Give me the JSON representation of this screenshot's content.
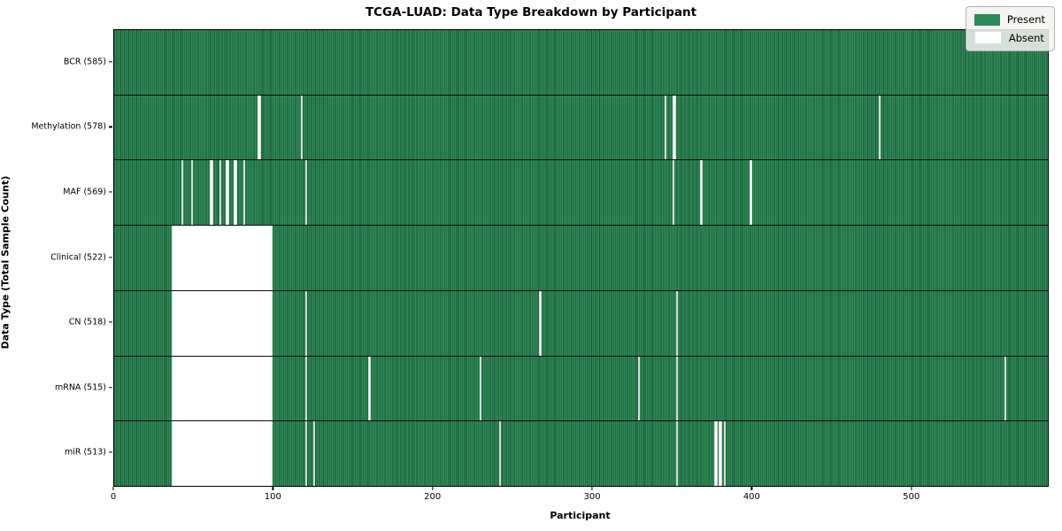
{
  "title": "TCGA-LUAD: Data Type Breakdown by Participant",
  "xlabel": "Participant",
  "ylabel": "Data Type (Total Sample Count)",
  "legend": {
    "present_label": "Present",
    "absent_label": "Absent",
    "position": "upper right"
  },
  "colors": {
    "present": "#2e8b57",
    "present_stripe_dark": "#1c5636",
    "absent": "#ffffff",
    "background": "#ffffff"
  },
  "chart_data": {
    "type": "heatmap",
    "title": "TCGA-LUAD: Data Type Breakdown by Participant",
    "xlabel": "Participant",
    "ylabel": "Data Type (Total Sample Count)",
    "x_ticks": [
      0,
      100,
      200,
      300,
      400,
      500
    ],
    "xlim": [
      0,
      585
    ],
    "n_participants": 585,
    "grid": false,
    "legend_position": "upper right",
    "legend_entries": [
      "Present",
      "Absent"
    ],
    "value_encoding": {
      "present": "#2e8b57",
      "absent": "#ffffff"
    },
    "rows": [
      {
        "label": "BCR (585)",
        "data_type": "BCR",
        "present_count": 585,
        "absent_count": 0,
        "absent_ranges": []
      },
      {
        "label": "Methylation (578)",
        "data_type": "Methylation",
        "present_count": 578,
        "absent_count": 7,
        "absent_ranges": [
          [
            90,
            91
          ],
          [
            117,
            117
          ],
          [
            345,
            345
          ],
          [
            350,
            351
          ],
          [
            479,
            479
          ]
        ]
      },
      {
        "label": "MAF (569)",
        "data_type": "MAF",
        "present_count": 569,
        "absent_count": 16,
        "absent_ranges": [
          [
            42,
            42
          ],
          [
            48,
            48
          ],
          [
            60,
            61
          ],
          [
            66,
            66
          ],
          [
            70,
            71
          ],
          [
            75,
            76
          ],
          [
            81,
            81
          ],
          [
            120,
            120
          ],
          [
            350,
            350
          ],
          [
            367,
            368
          ],
          [
            398,
            399
          ]
        ]
      },
      {
        "label": "Clinical (522)",
        "data_type": "Clinical",
        "present_count": 522,
        "absent_count": 63,
        "absent_ranges": [
          [
            36,
            98
          ]
        ]
      },
      {
        "label": "CN (518)",
        "data_type": "CN",
        "present_count": 518,
        "absent_count": 67,
        "absent_ranges": [
          [
            36,
            98
          ],
          [
            120,
            120
          ],
          [
            266,
            267
          ],
          [
            352,
            352
          ]
        ]
      },
      {
        "label": "mRNA (515)",
        "data_type": "mRNA",
        "present_count": 515,
        "absent_count": 70,
        "absent_ranges": [
          [
            36,
            98
          ],
          [
            120,
            120
          ],
          [
            159,
            160
          ],
          [
            229,
            229
          ],
          [
            328,
            328
          ],
          [
            352,
            352
          ],
          [
            558,
            558
          ]
        ]
      },
      {
        "label": "miR (513)",
        "data_type": "miR",
        "present_count": 513,
        "absent_count": 72,
        "absent_ranges": [
          [
            36,
            98
          ],
          [
            120,
            120
          ],
          [
            125,
            125
          ],
          [
            241,
            241
          ],
          [
            352,
            352
          ],
          [
            376,
            377
          ],
          [
            379,
            380
          ],
          [
            382,
            382
          ]
        ]
      }
    ]
  }
}
